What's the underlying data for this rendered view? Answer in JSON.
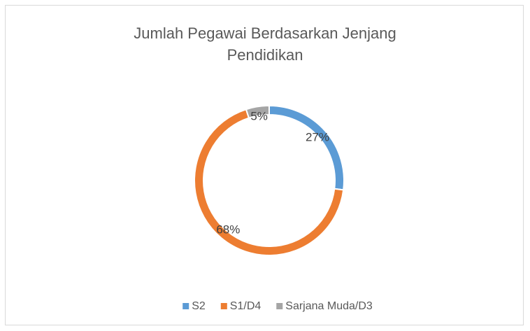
{
  "chart_data": {
    "type": "donut",
    "title": "Jumlah Pegawai Berdasarkan Jenjang Pendidikan",
    "categories": [
      "S2",
      "S1/D4",
      "Sarjana Muda/D3"
    ],
    "values": [
      27,
      68,
      5
    ],
    "value_labels": [
      "27%",
      "68%",
      "5%"
    ],
    "colors": [
      "#5b9bd5",
      "#ed7d31",
      "#a5a5a5"
    ],
    "legend": "bottom"
  }
}
